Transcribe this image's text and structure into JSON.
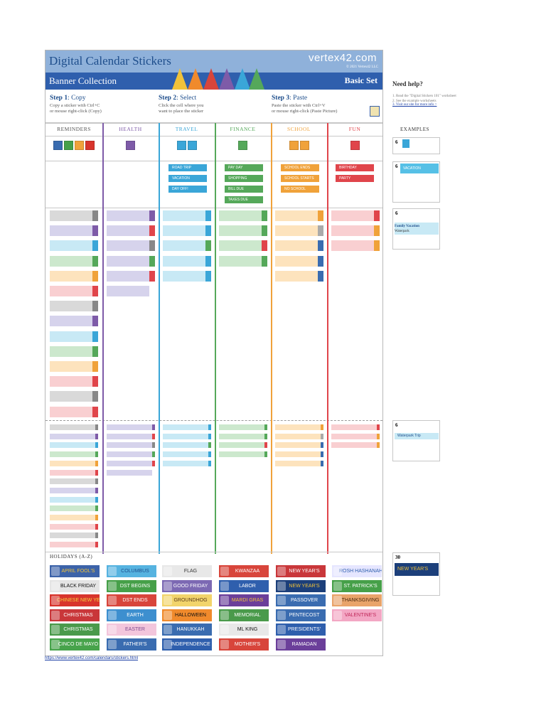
{
  "header": {
    "title": "Digital Calendar Stickers",
    "brand": "vertex42.com",
    "copyright": "© 2021 Vertex42 LLC",
    "subtitle": "Banner Collection",
    "set_label": "Basic Set"
  },
  "steps": [
    {
      "num": "Step 1",
      "action": ": Copy",
      "line1": "Copy a sticker with Ctrl+C",
      "line2": "or mouse right-click (Copy)"
    },
    {
      "num": "Step 2",
      "action": ": Select",
      "line1": "Click the cell where you",
      "line2": "want to place the sticker"
    },
    {
      "num": "Step 3",
      "action": ": Paste",
      "line1": "Paste the sticker with Ctrl+V",
      "line2": "or mouse right-click (Paste Picture)"
    }
  ],
  "columns": [
    {
      "name": "REMINDERS",
      "color": "#555555"
    },
    {
      "name": "HEALTH",
      "color": "#7e5ba8"
    },
    {
      "name": "TRAVEL",
      "color": "#3aa6d8"
    },
    {
      "name": "FINANCE",
      "color": "#55a85a"
    },
    {
      "name": "SCHOOL",
      "color": "#f0a23a"
    },
    {
      "name": "FUN",
      "color": "#e0454b"
    }
  ],
  "labels": {
    "travel": [
      "ROAD TRIP",
      "VACATION",
      "DAY OFF!"
    ],
    "finance": [
      "PAY DAY",
      "SHOPPING",
      "BILL DUE",
      "TAXES DUE"
    ],
    "school": [
      "SCHOOL ENDS",
      "SCHOOL STARTS",
      "NO SCHOOL"
    ],
    "fun": [
      "BIRTHDAY",
      "PARTY"
    ]
  },
  "holidays": {
    "title": "HOLIDAYS (A-Z)",
    "items": [
      {
        "label": "APRIL FOOL'S",
        "color": "#3c63a9",
        "text": "#f0c23a"
      },
      {
        "label": "BLACK FRIDAY",
        "color": "#e4e4e4",
        "text": "#111111"
      },
      {
        "label": "CHINESE NEW YEAR",
        "color": "#d8342c",
        "text": "#f4d03f"
      },
      {
        "label": "CHRISTMAS",
        "color": "#c9373a",
        "text": "#ffffff"
      },
      {
        "label": "CHRISTMAS",
        "color": "#4a9a4b",
        "text": "#ffffff"
      },
      {
        "label": "CINCO DE MAYO",
        "color": "#47a34b",
        "text": "#ffffff"
      },
      {
        "label": "COLUMBUS",
        "color": "#56b3e0",
        "text": "#1e4e8c"
      },
      {
        "label": "DST BEGINS",
        "color": "#46a049",
        "text": "#ffffff"
      },
      {
        "label": "DST ENDS",
        "color": "#d8453b",
        "text": "#ffffff"
      },
      {
        "label": "EARTH",
        "color": "#3d8fcf",
        "text": "#ffffff"
      },
      {
        "label": "EASTER",
        "color": "#f3c6dc",
        "text": "#7e4a8f"
      },
      {
        "label": "FATHER'S",
        "color": "#3a6cb0",
        "text": "#ffffff"
      },
      {
        "label": "FLAG",
        "color": "#e8e8e8",
        "text": "#333333"
      },
      {
        "label": "GOOD FRIDAY",
        "color": "#7c69b3",
        "text": "#ffffff"
      },
      {
        "label": "GROUNDHOG",
        "color": "#f2d46b",
        "text": "#5a3a1a"
      },
      {
        "label": "HALLOWEEN",
        "color": "#f08a2c",
        "text": "#111111"
      },
      {
        "label": "HANUKKAH",
        "color": "#3a6cb0",
        "text": "#ffffff"
      },
      {
        "label": "INDEPENDENCE",
        "color": "#2f5fad",
        "text": "#ffffff"
      },
      {
        "label": "KWANZAA",
        "color": "#d8453b",
        "text": "#ffffff"
      },
      {
        "label": "LABOR",
        "color": "#2f5fad",
        "text": "#ffffff"
      },
      {
        "label": "MARDI GRAS",
        "color": "#6b3f9a",
        "text": "#f0c23a"
      },
      {
        "label": "MEMORIAL",
        "color": "#4a9a4b",
        "text": "#ffffff"
      },
      {
        "label": "ML KING",
        "color": "#e8e8e8",
        "text": "#111111"
      },
      {
        "label": "MOTHER'S",
        "color": "#d8453b",
        "text": "#ffffff"
      },
      {
        "label": "NEW YEAR'S",
        "color": "#c9373a",
        "text": "#ffffff"
      },
      {
        "label": "NEW YEAR'S",
        "color": "#1c3f7a",
        "text": "#f0c23a"
      },
      {
        "label": "PASSOVER",
        "color": "#3a6cb0",
        "text": "#ffffff"
      },
      {
        "label": "PENTECOST",
        "color": "#3a6cb0",
        "text": "#ffffff"
      },
      {
        "label": "PRESIDENTS'",
        "color": "#2f5fad",
        "text": "#ffffff"
      },
      {
        "label": "RAMADAN",
        "color": "#6b3f9a",
        "text": "#ffffff"
      },
      {
        "label": "ROSH HASHANAH",
        "color": "#e6e6ff",
        "text": "#2f5fad"
      },
      {
        "label": "ST. PATRICK'S",
        "color": "#46a049",
        "text": "#ffffff"
      },
      {
        "label": "THANKSGIVING",
        "color": "#e9a46a",
        "text": "#4a2a10"
      },
      {
        "label": "VALENTINE'S",
        "color": "#f3a7c4",
        "text": "#c0285a"
      }
    ]
  },
  "footer": {
    "url": "https://www.vertex42.com/calendars/stickers.html"
  },
  "help": {
    "title": "Need help?",
    "line1": "1. Read the \"Digital Stickers 101\" worksheet",
    "line2": "2. See the example worksheets",
    "link": "3. Visit our site for more info >"
  },
  "examples": {
    "title": "EXAMPLES",
    "items": [
      {
        "day": "6",
        "banner": "",
        "text": ""
      },
      {
        "day": "6",
        "banner": "VACATION",
        "text": ""
      },
      {
        "day": "6",
        "banner": "",
        "text": "Family Vacation",
        "sub": "Waterpark"
      },
      {
        "day": "6",
        "banner": "Waterpark Trip",
        "text": ""
      },
      {
        "day": "30",
        "banner": "NEW YEAR'S",
        "text": ""
      }
    ]
  }
}
